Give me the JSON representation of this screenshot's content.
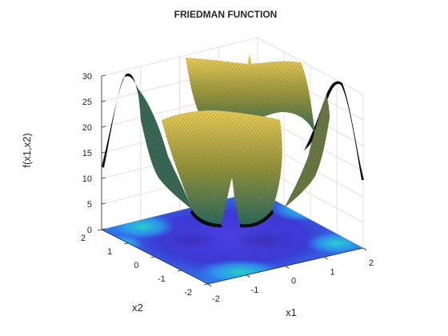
{
  "chart_data": {
    "type": "surface",
    "title": "FRIEDMAN FUNCTION",
    "xlabel": "x1",
    "ylabel": "x2",
    "zlabel": "f(x1,x2)",
    "xlim": [
      -2,
      2
    ],
    "ylim": [
      -2,
      2
    ],
    "zlim": [
      0,
      30
    ],
    "xticks": [
      "-2",
      "-1",
      "0",
      "1",
      "2"
    ],
    "yticks": [
      "-2",
      "-1",
      "0",
      "1",
      "2"
    ],
    "zticks": [
      "0",
      "5",
      "10",
      "15",
      "20",
      "25",
      "30"
    ],
    "grid": true,
    "contour_projection_at_z": 0,
    "colormap": "parula",
    "colors": {
      "surface_high": "#f2d45a",
      "surface_mid": "#8a8f3a",
      "surface_low": "#2e6b5e",
      "mesh_edge": "#000000",
      "contour_low": "#3d3bd6",
      "contour_mid": "#2f8cf0",
      "contour_high": "#1fd6c4",
      "grid": "#e0e0e0",
      "axis": "#262626"
    }
  }
}
